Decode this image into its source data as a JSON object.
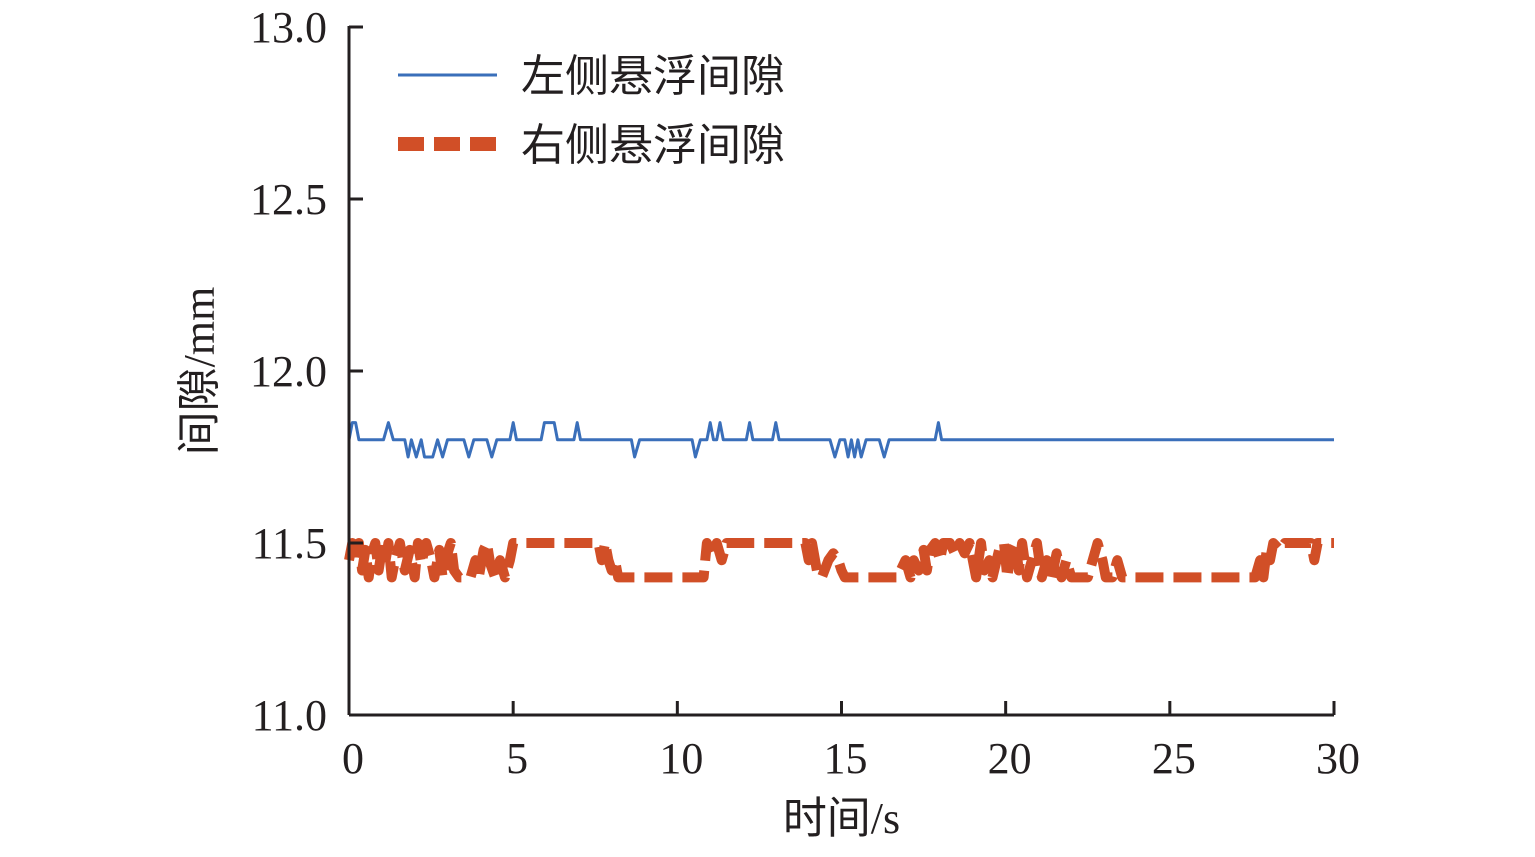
{
  "chart_data": {
    "type": "line",
    "title": "",
    "xlabel": "时间/s",
    "ylabel": "间隙/mm",
    "xlim": [
      0,
      30
    ],
    "ylim": [
      11.0,
      13.0
    ],
    "x_ticks": [
      "0",
      "5",
      "10",
      "15",
      "20",
      "25",
      "30"
    ],
    "y_ticks": [
      "11.0",
      "11.5",
      "12.0",
      "12.5",
      "13.0"
    ],
    "grid": false,
    "legend_position": "top-left",
    "series": [
      {
        "name": "左侧悬浮间隙",
        "color": "#3a6fba",
        "style": "solid",
        "points": [
          [
            0.0,
            11.8
          ],
          [
            0.1,
            11.85
          ],
          [
            0.2,
            11.85
          ],
          [
            0.3,
            11.8
          ],
          [
            1.05,
            11.8
          ],
          [
            1.2,
            11.85
          ],
          [
            1.35,
            11.8
          ],
          [
            1.7,
            11.8
          ],
          [
            1.8,
            11.75
          ],
          [
            1.9,
            11.8
          ],
          [
            2.05,
            11.75
          ],
          [
            2.2,
            11.8
          ],
          [
            2.3,
            11.75
          ],
          [
            2.55,
            11.75
          ],
          [
            2.7,
            11.8
          ],
          [
            2.85,
            11.75
          ],
          [
            3.0,
            11.8
          ],
          [
            3.5,
            11.8
          ],
          [
            3.65,
            11.75
          ],
          [
            3.8,
            11.8
          ],
          [
            4.2,
            11.8
          ],
          [
            4.35,
            11.75
          ],
          [
            4.5,
            11.8
          ],
          [
            4.9,
            11.8
          ],
          [
            5.0,
            11.85
          ],
          [
            5.1,
            11.8
          ],
          [
            5.85,
            11.8
          ],
          [
            5.95,
            11.85
          ],
          [
            6.25,
            11.85
          ],
          [
            6.35,
            11.8
          ],
          [
            6.85,
            11.8
          ],
          [
            6.95,
            11.85
          ],
          [
            7.05,
            11.8
          ],
          [
            8.6,
            11.8
          ],
          [
            8.7,
            11.75
          ],
          [
            8.85,
            11.8
          ],
          [
            10.45,
            11.8
          ],
          [
            10.55,
            11.75
          ],
          [
            10.7,
            11.8
          ],
          [
            10.9,
            11.8
          ],
          [
            11.0,
            11.85
          ],
          [
            11.1,
            11.8
          ],
          [
            11.2,
            11.8
          ],
          [
            11.3,
            11.85
          ],
          [
            11.4,
            11.8
          ],
          [
            12.1,
            11.8
          ],
          [
            12.2,
            11.85
          ],
          [
            12.3,
            11.8
          ],
          [
            12.9,
            11.8
          ],
          [
            13.0,
            11.85
          ],
          [
            13.1,
            11.8
          ],
          [
            14.65,
            11.8
          ],
          [
            14.8,
            11.75
          ],
          [
            14.95,
            11.8
          ],
          [
            15.1,
            11.8
          ],
          [
            15.2,
            11.75
          ],
          [
            15.3,
            11.8
          ],
          [
            15.4,
            11.75
          ],
          [
            15.5,
            11.8
          ],
          [
            15.6,
            11.75
          ],
          [
            15.75,
            11.8
          ],
          [
            16.15,
            11.8
          ],
          [
            16.3,
            11.75
          ],
          [
            16.45,
            11.8
          ],
          [
            17.85,
            11.8
          ],
          [
            17.95,
            11.85
          ],
          [
            18.05,
            11.8
          ],
          [
            30.0,
            11.8
          ]
        ]
      },
      {
        "name": "右侧悬浮间隙",
        "color": "#d14f27",
        "style": "dashed",
        "points": [
          [
            0.0,
            11.45
          ],
          [
            0.1,
            11.5
          ],
          [
            0.2,
            11.45
          ],
          [
            0.3,
            11.5
          ],
          [
            0.4,
            11.42
          ],
          [
            0.5,
            11.48
          ],
          [
            0.6,
            11.4
          ],
          [
            0.7,
            11.47
          ],
          [
            0.8,
            11.5
          ],
          [
            0.9,
            11.42
          ],
          [
            1.0,
            11.48
          ],
          [
            1.1,
            11.44
          ],
          [
            1.2,
            11.5
          ],
          [
            1.3,
            11.4
          ],
          [
            1.4,
            11.45
          ],
          [
            1.55,
            11.5
          ],
          [
            1.7,
            11.42
          ],
          [
            1.85,
            11.48
          ],
          [
            2.0,
            11.4
          ],
          [
            2.1,
            11.5
          ],
          [
            2.2,
            11.44
          ],
          [
            2.35,
            11.5
          ],
          [
            2.5,
            11.45
          ],
          [
            2.6,
            11.4
          ],
          [
            2.75,
            11.48
          ],
          [
            2.85,
            11.4
          ],
          [
            3.0,
            11.47
          ],
          [
            3.1,
            11.5
          ],
          [
            3.2,
            11.42
          ],
          [
            3.35,
            11.4
          ],
          [
            3.5,
            11.4
          ],
          [
            3.7,
            11.4
          ],
          [
            3.85,
            11.45
          ],
          [
            3.95,
            11.4
          ],
          [
            4.1,
            11.48
          ],
          [
            4.2,
            11.5
          ],
          [
            4.3,
            11.44
          ],
          [
            4.45,
            11.4
          ],
          [
            4.6,
            11.45
          ],
          [
            4.75,
            11.4
          ],
          [
            4.9,
            11.45
          ],
          [
            5.0,
            11.5
          ],
          [
            5.9,
            11.5
          ],
          [
            7.6,
            11.5
          ],
          [
            7.7,
            11.45
          ],
          [
            7.8,
            11.5
          ],
          [
            7.9,
            11.45
          ],
          [
            8.0,
            11.42
          ],
          [
            8.1,
            11.45
          ],
          [
            8.2,
            11.4
          ],
          [
            10.8,
            11.4
          ],
          [
            10.85,
            11.45
          ],
          [
            10.9,
            11.5
          ],
          [
            11.05,
            11.47
          ],
          [
            11.2,
            11.5
          ],
          [
            11.35,
            11.45
          ],
          [
            11.5,
            11.5
          ],
          [
            13.9,
            11.5
          ],
          [
            14.0,
            11.45
          ],
          [
            14.1,
            11.5
          ],
          [
            14.25,
            11.42
          ],
          [
            14.4,
            11.4
          ],
          [
            14.6,
            11.45
          ],
          [
            14.75,
            11.47
          ],
          [
            14.9,
            11.45
          ],
          [
            15.0,
            11.42
          ],
          [
            15.1,
            11.4
          ],
          [
            16.7,
            11.4
          ],
          [
            16.8,
            11.42
          ],
          [
            16.95,
            11.45
          ],
          [
            17.1,
            11.4
          ],
          [
            17.2,
            11.45
          ],
          [
            17.35,
            11.42
          ],
          [
            17.5,
            11.48
          ],
          [
            17.6,
            11.42
          ],
          [
            17.7,
            11.48
          ],
          [
            17.85,
            11.5
          ],
          [
            18.0,
            11.45
          ],
          [
            18.1,
            11.5
          ],
          [
            18.3,
            11.5
          ],
          [
            18.45,
            11.47
          ],
          [
            18.6,
            11.5
          ],
          [
            18.75,
            11.47
          ],
          [
            18.9,
            11.5
          ],
          [
            19.1,
            11.4
          ],
          [
            19.25,
            11.5
          ],
          [
            19.35,
            11.42
          ],
          [
            19.5,
            11.45
          ],
          [
            19.6,
            11.4
          ],
          [
            19.8,
            11.48
          ],
          [
            19.95,
            11.5
          ],
          [
            20.05,
            11.4
          ],
          [
            20.15,
            11.47
          ],
          [
            20.3,
            11.5
          ],
          [
            20.4,
            11.42
          ],
          [
            20.5,
            11.5
          ],
          [
            20.65,
            11.4
          ],
          [
            20.8,
            11.45
          ],
          [
            20.95,
            11.5
          ],
          [
            21.1,
            11.4
          ],
          [
            21.25,
            11.45
          ],
          [
            21.4,
            11.4
          ],
          [
            21.55,
            11.47
          ],
          [
            21.7,
            11.4
          ],
          [
            21.85,
            11.45
          ],
          [
            22.0,
            11.4
          ],
          [
            22.5,
            11.4
          ],
          [
            22.65,
            11.45
          ],
          [
            22.8,
            11.5
          ],
          [
            22.95,
            11.45
          ],
          [
            23.05,
            11.4
          ],
          [
            23.25,
            11.4
          ],
          [
            23.4,
            11.45
          ],
          [
            23.55,
            11.4
          ],
          [
            27.6,
            11.4
          ],
          [
            27.75,
            11.45
          ],
          [
            27.85,
            11.4
          ],
          [
            27.95,
            11.48
          ],
          [
            28.05,
            11.45
          ],
          [
            28.15,
            11.5
          ],
          [
            28.35,
            11.48
          ],
          [
            28.5,
            11.5
          ],
          [
            29.3,
            11.5
          ],
          [
            29.4,
            11.45
          ],
          [
            29.5,
            11.5
          ],
          [
            30.0,
            11.5
          ]
        ]
      }
    ]
  }
}
